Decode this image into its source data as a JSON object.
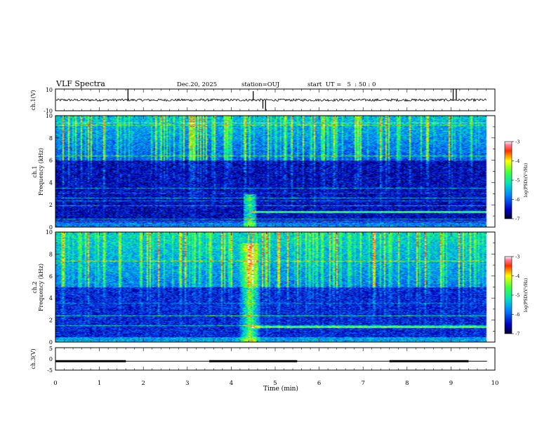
{
  "header": {
    "title": "VLF Spectra",
    "date": "Dec.20, 2025",
    "station": "station=OUJ",
    "start_ut": "start  UT =   5  : 50 : 0"
  },
  "chart_data": [
    {
      "type": "line",
      "name": "ch1-waveform",
      "ylabel": "ch.1(V)",
      "ylim": [
        -10,
        10
      ],
      "ytick_labels": [
        "10",
        "-10"
      ],
      "xlim": [
        0,
        10
      ],
      "baseline": 0,
      "spikes": [
        {
          "x": 1.65,
          "y": 10
        },
        {
          "x": 4.5,
          "y": 8
        },
        {
          "x": 4.72,
          "y": -8
        },
        {
          "x": 4.78,
          "y": -10
        },
        {
          "x": 9.05,
          "y": 10
        },
        {
          "x": 9.12,
          "y": 10
        }
      ]
    },
    {
      "type": "heatmap",
      "name": "ch1-spectrogram",
      "ylabel": "ch.1\nFrequency (kHz)",
      "xlim": [
        0,
        10
      ],
      "ylim": [
        0,
        10
      ],
      "yticks": [
        0,
        2,
        4,
        6,
        8,
        10
      ],
      "colorbar": {
        "label": "log(PSD)(V²/Hz)",
        "range": [
          -7,
          -3
        ],
        "ticks": [
          -3,
          -4,
          -5,
          -6,
          -7
        ]
      },
      "features": {
        "noise_floor_log_psd": -6.5,
        "upper_band_khz": [
          6,
          10
        ],
        "strong_line_khz": 1.4,
        "burst_time_min": 4.4
      }
    },
    {
      "type": "heatmap",
      "name": "ch2-spectrogram",
      "ylabel": "ch.2\nFrequency (kHz)",
      "xlim": [
        0,
        10
      ],
      "ylim": [
        0,
        10
      ],
      "yticks": [
        0,
        2,
        4,
        6,
        8,
        10
      ],
      "colorbar": {
        "label": "log(PSD)(V²/Hz)",
        "range": [
          -7,
          -3
        ],
        "ticks": [
          -3,
          -4,
          -5,
          -6,
          -7
        ]
      },
      "features": {
        "noise_floor_log_psd": -6.3,
        "upper_band_khz": [
          5,
          10
        ],
        "strong_line_khz": 1.4,
        "burst_time_min": 4.4
      }
    },
    {
      "type": "line",
      "name": "ch3-signal",
      "ylabel": "ch.3(V)",
      "ylim": [
        -5,
        5
      ],
      "ytick_labels": [
        "5",
        "0",
        "-5"
      ],
      "xlim": [
        0,
        10
      ],
      "level": -1,
      "thick_segments_min": [
        [
          0,
          1.6
        ],
        [
          3.5,
          5.5
        ],
        [
          7.6,
          9.4
        ]
      ]
    }
  ],
  "xaxis": {
    "label": "Time (min)",
    "ticks": [
      "0",
      "1",
      "2",
      "3",
      "4",
      "5",
      "6",
      "7",
      "8",
      "9",
      "10"
    ]
  }
}
